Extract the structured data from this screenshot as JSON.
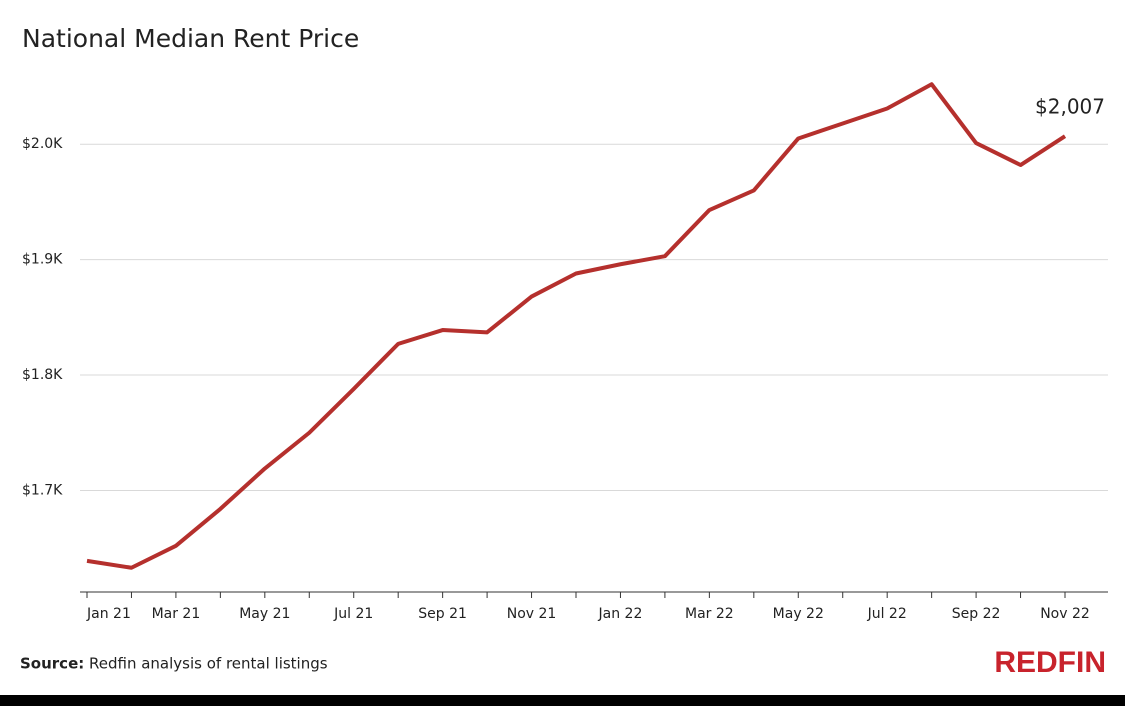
{
  "chart_data": {
    "type": "line",
    "title": "National Median Rent Price",
    "categories": [
      "Jan 21",
      null,
      "Mar 21",
      null,
      "May 21",
      null,
      "Jul 21",
      null,
      "Sep 21",
      null,
      "Nov 21",
      null,
      "Jan 22",
      null,
      "Mar 22",
      null,
      "May 22",
      null,
      "Jul 22",
      null,
      "Sep 22",
      null,
      "Nov 22"
    ],
    "series": [
      {
        "color": "#b5302d",
        "values": [
          1639,
          1633,
          1652,
          1684,
          1719,
          1750,
          1788,
          1827,
          1839,
          1837,
          1868,
          1888,
          1896,
          1903,
          1943,
          1960,
          2005,
          2018,
          2031,
          2052,
          2001,
          1982,
          2007
        ],
        "value_labels": [
          null,
          null,
          null,
          null,
          null,
          null,
          null,
          null,
          null,
          null,
          null,
          null,
          null,
          null,
          null,
          null,
          null,
          null,
          null,
          null,
          null,
          null,
          "$2,007"
        ]
      }
    ],
    "ylim": [
      1612,
      2073
    ],
    "yticks": [
      {
        "value": 1700,
        "label": "$1.7K"
      },
      {
        "value": 1800,
        "label": "$1.8K"
      },
      {
        "value": 1900,
        "label": "$1.9K"
      },
      {
        "value": 2000,
        "label": "$2.0K"
      }
    ],
    "grid": true,
    "source_label": "Source:",
    "source_text": "Redfin analysis of rental listings",
    "logo": "REDFIN"
  }
}
